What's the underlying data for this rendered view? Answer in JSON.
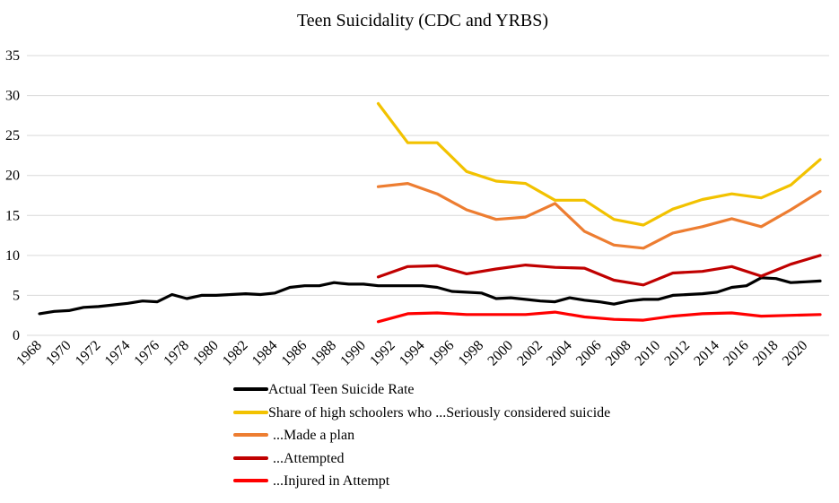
{
  "chart_data": {
    "type": "line",
    "title": "Teen Suicidality (CDC and YRBS)",
    "xlabel": "",
    "ylabel": "",
    "ylim": [
      0,
      35
    ],
    "yticks": [
      0,
      5,
      10,
      15,
      20,
      25,
      30,
      35
    ],
    "xlim": [
      1968,
      2021
    ],
    "xticks": [
      1968,
      1970,
      1972,
      1974,
      1976,
      1978,
      1980,
      1982,
      1984,
      1986,
      1988,
      1990,
      1992,
      1994,
      1996,
      1998,
      2000,
      2002,
      2004,
      2006,
      2008,
      2010,
      2012,
      2014,
      2016,
      2018,
      2020
    ],
    "xtick_labels": [
      "1968",
      "1970",
      "1972",
      "1974",
      "1976",
      "1978",
      "1980",
      "1982",
      "1984",
      "1986",
      "1988",
      "1990",
      "1992",
      "1994",
      "1996",
      "1998",
      "2000",
      "2002",
      "2004",
      "2006",
      "2008",
      "2010",
      "2012",
      "2014",
      "2016",
      "2018",
      "2020"
    ],
    "grid": "horizontal",
    "legend_position": "bottom",
    "series": [
      {
        "name": "Actual Teen Suicide Rate",
        "color": "#000000",
        "x": [
          1968,
          1969,
          1970,
          1971,
          1972,
          1973,
          1974,
          1975,
          1976,
          1977,
          1978,
          1979,
          1980,
          1981,
          1982,
          1983,
          1984,
          1985,
          1986,
          1987,
          1988,
          1989,
          1990,
          1991,
          1992,
          1993,
          1994,
          1995,
          1996,
          1997,
          1998,
          1999,
          2000,
          2001,
          2002,
          2003,
          2004,
          2005,
          2006,
          2007,
          2008,
          2009,
          2010,
          2011,
          2012,
          2013,
          2014,
          2015,
          2016,
          2017,
          2018,
          2019,
          2020,
          2021
        ],
        "values": [
          2.7,
          3.0,
          3.1,
          3.5,
          3.6,
          3.8,
          4.0,
          4.3,
          4.2,
          5.1,
          4.6,
          5.0,
          5.0,
          5.1,
          5.2,
          5.1,
          5.3,
          6.0,
          6.2,
          6.2,
          6.6,
          6.4,
          6.4,
          6.2,
          6.2,
          6.2,
          6.2,
          6.0,
          5.5,
          5.4,
          5.3,
          4.6,
          4.7,
          4.5,
          4.3,
          4.2,
          4.7,
          4.4,
          4.2,
          3.9,
          4.3,
          4.5,
          4.5,
          5.0,
          5.1,
          5.2,
          5.4,
          6.0,
          6.2,
          7.2,
          7.1,
          6.6,
          6.7,
          6.8
        ]
      },
      {
        "name": "Share of high schoolers who ...Seriously considered suicide",
        "color": "#f2c200",
        "x": [
          1991,
          1993,
          1995,
          1997,
          1999,
          2001,
          2003,
          2005,
          2007,
          2009,
          2011,
          2013,
          2015,
          2017,
          2019,
          2021
        ],
        "values": [
          29.0,
          24.1,
          24.1,
          20.5,
          19.3,
          19.0,
          16.9,
          16.9,
          14.5,
          13.8,
          15.8,
          17.0,
          17.7,
          17.2,
          18.8,
          22.0
        ]
      },
      {
        "name": "...Made a plan",
        "color": "#ed7d31",
        "x": [
          1991,
          1993,
          1995,
          1997,
          1999,
          2001,
          2003,
          2005,
          2007,
          2009,
          2011,
          2013,
          2015,
          2017,
          2019,
          2021
        ],
        "values": [
          18.6,
          19.0,
          17.7,
          15.7,
          14.5,
          14.8,
          16.5,
          13.0,
          11.3,
          10.9,
          12.8,
          13.6,
          14.6,
          13.6,
          15.7,
          18.0
        ]
      },
      {
        "name": "...Attempted",
        "color": "#c00000",
        "x": [
          1991,
          1993,
          1995,
          1997,
          1999,
          2001,
          2003,
          2005,
          2007,
          2009,
          2011,
          2013,
          2015,
          2017,
          2019,
          2021
        ],
        "values": [
          7.3,
          8.6,
          8.7,
          7.7,
          8.3,
          8.8,
          8.5,
          8.4,
          6.9,
          6.3,
          7.8,
          8.0,
          8.6,
          7.4,
          8.9,
          10.0
        ]
      },
      {
        "name": "...Injured in Attempt",
        "color": "#ff0000",
        "x": [
          1991,
          1993,
          1995,
          1997,
          1999,
          2001,
          2003,
          2005,
          2007,
          2009,
          2011,
          2013,
          2015,
          2017,
          2019,
          2021
        ],
        "values": [
          1.7,
          2.7,
          2.8,
          2.6,
          2.6,
          2.6,
          2.9,
          2.3,
          2.0,
          1.9,
          2.4,
          2.7,
          2.8,
          2.4,
          2.5,
          2.6
        ]
      }
    ]
  }
}
